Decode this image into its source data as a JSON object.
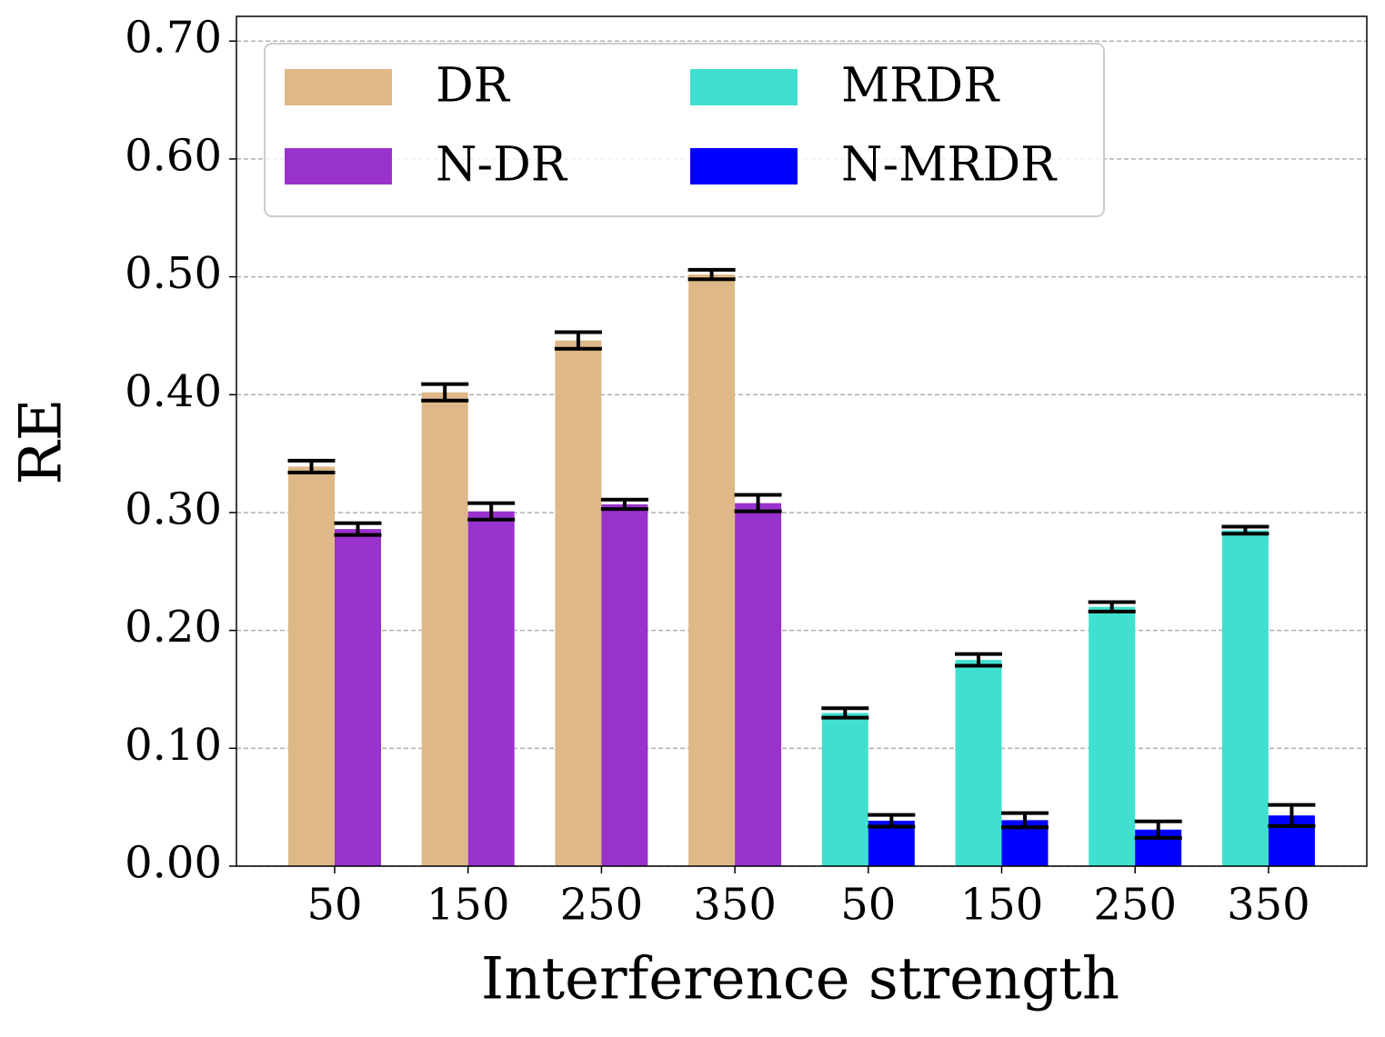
{
  "chart_data": {
    "type": "bar",
    "x_label": "Interference strength",
    "y_label": "RE",
    "categories": [
      "50",
      "150",
      "250",
      "350",
      "50",
      "150",
      "250",
      "350"
    ],
    "series": [
      {
        "name": "DR",
        "color": "#deb887",
        "values": [
          0.339,
          0.402,
          0.446,
          0.502,
          null,
          null,
          null,
          null
        ],
        "errors": [
          0.005,
          0.007,
          0.007,
          0.004,
          null,
          null,
          null,
          null
        ]
      },
      {
        "name": "N-DR",
        "color": "#9932cc",
        "values": [
          0.286,
          0.301,
          0.307,
          0.308,
          null,
          null,
          null,
          null
        ],
        "errors": [
          0.005,
          0.007,
          0.004,
          0.007,
          null,
          null,
          null,
          null
        ]
      },
      {
        "name": "MRDR",
        "color": "#40e0d0",
        "values": [
          null,
          null,
          null,
          null,
          0.13,
          0.175,
          0.22,
          0.285
        ],
        "errors": [
          null,
          null,
          null,
          null,
          0.004,
          0.005,
          0.004,
          0.003
        ]
      },
      {
        "name": "N-MRDR",
        "color": "#0000ff",
        "values": [
          null,
          null,
          null,
          null,
          0.0385,
          0.039,
          0.031,
          0.043
        ],
        "errors": [
          null,
          null,
          null,
          null,
          0.005,
          0.006,
          0.007,
          0.009
        ]
      }
    ],
    "ylim": [
      0,
      0.721
    ],
    "yticks": [
      {
        "value": 0,
        "label": "0.00"
      },
      {
        "value": 0.1,
        "label": "0.10"
      },
      {
        "value": 0.2,
        "label": "0.20"
      },
      {
        "value": 0.3,
        "label": "0.30"
      },
      {
        "value": 0.4,
        "label": "0.40"
      },
      {
        "value": 0.5,
        "label": "0.50"
      },
      {
        "value": 0.6,
        "label": "0.60"
      },
      {
        "value": 0.7,
        "label": "0.70"
      }
    ],
    "grid": true,
    "legend": "upper left"
  }
}
